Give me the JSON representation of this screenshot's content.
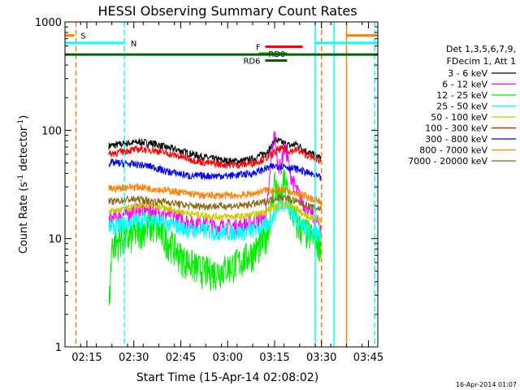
{
  "chart_data": {
    "type": "line",
    "title": "HESSI Observing Summary Count Rates",
    "xlabel": "Start Time (15-Apr-14 02:08:02)",
    "ylabel_main": "Count Rate (s",
    "ylabel_exp1": "-1",
    "ylabel_mid": " detector",
    "ylabel_exp2": "-1",
    "ylabel_end": ")",
    "yscale": "log",
    "ylim": [
      1,
      1000
    ],
    "xlim_minutes": [
      0,
      100
    ],
    "x_ticks": [
      {
        "label": "02:15",
        "minutes": 7
      },
      {
        "label": "02:30",
        "minutes": 22
      },
      {
        "label": "02:45",
        "minutes": 37
      },
      {
        "label": "03:00",
        "minutes": 52
      },
      {
        "label": "03:15",
        "minutes": 67
      },
      {
        "label": "03:30",
        "minutes": 82
      },
      {
        "label": "03:45",
        "minutes": 97
      }
    ],
    "y_ticks": [
      {
        "label": "1",
        "value": 1
      },
      {
        "label": "10",
        "value": 10
      },
      {
        "label": "100",
        "value": 100
      },
      {
        "label": "1000",
        "value": 1000
      }
    ],
    "legend_header": [
      "Det 1,3,5,6,7,9,",
      "FDecim 1, Att 1"
    ],
    "legend_placement": "right",
    "series": [
      {
        "name": "3 - 6 keV",
        "color": "#000000",
        "x": [
          14,
          16,
          20,
          24,
          28,
          32,
          36,
          40,
          44,
          48,
          52,
          56,
          60,
          62,
          64,
          66,
          67,
          68,
          70,
          72,
          74,
          76,
          78,
          80,
          82
        ],
        "y": [
          72,
          73,
          76,
          78,
          76,
          70,
          66,
          61,
          57,
          54,
          52,
          52,
          54,
          58,
          62,
          70,
          82,
          80,
          76,
          72,
          75,
          68,
          62,
          58,
          55
        ]
      },
      {
        "name": "6 - 12 keV",
        "color": "#ff00ff",
        "x": [
          14,
          16,
          20,
          24,
          28,
          32,
          36,
          40,
          44,
          48,
          52,
          56,
          60,
          62,
          64,
          65,
          66,
          67,
          68,
          69,
          70,
          71,
          72,
          74,
          76,
          78,
          80,
          82
        ],
        "y": [
          15,
          16,
          17,
          19,
          18,
          17,
          16,
          14,
          14,
          13,
          13,
          13,
          14,
          15,
          16,
          24,
          60,
          95,
          50,
          45,
          70,
          60,
          40,
          28,
          22,
          18,
          15,
          13
        ]
      },
      {
        "name": "12 - 25 keV",
        "color": "#00ee00",
        "x": [
          14,
          15,
          16,
          18,
          20,
          22,
          24,
          26,
          28,
          30,
          32,
          34,
          36,
          38,
          40,
          42,
          44,
          46,
          48,
          50,
          52,
          54,
          56,
          58,
          60,
          62,
          64,
          65,
          66,
          67,
          68,
          69,
          70,
          71,
          72,
          74,
          76,
          78,
          80,
          82
        ],
        "y": [
          2,
          9,
          9,
          10,
          10,
          11,
          12,
          13,
          13,
          12,
          10,
          9,
          7.5,
          6.5,
          6,
          5.5,
          5.2,
          5,
          5,
          5.2,
          5.5,
          5.8,
          6.2,
          6.8,
          7.5,
          8.5,
          10,
          13,
          20,
          35,
          25,
          22,
          35,
          28,
          20,
          14,
          12,
          11,
          10,
          9
        ]
      },
      {
        "name": "25 - 50 keV",
        "color": "#00ffff",
        "x": [
          14,
          16,
          20,
          24,
          28,
          32,
          36,
          40,
          44,
          48,
          52,
          56,
          60,
          62,
          64,
          66,
          68,
          70,
          72,
          74,
          76,
          78,
          80,
          82
        ],
        "y": [
          13,
          13,
          14,
          15,
          15,
          14,
          13,
          12,
          12,
          11.5,
          11.5,
          11.5,
          12,
          12.5,
          13,
          15,
          20,
          22,
          18,
          15,
          13,
          12,
          11.5,
          11
        ]
      },
      {
        "name": "50 - 100 keV",
        "color": "#cccc00",
        "x": [
          14,
          16,
          20,
          24,
          28,
          32,
          36,
          40,
          44,
          48,
          52,
          56,
          60,
          62,
          64,
          66,
          68,
          70,
          72,
          74,
          76,
          78,
          80,
          82
        ],
        "y": [
          18,
          18,
          19,
          20,
          20,
          19,
          18,
          17,
          16.5,
          16,
          16,
          16,
          16.5,
          17,
          18,
          19,
          20,
          21,
          20,
          19,
          17,
          16,
          15.5,
          15
        ]
      },
      {
        "name": "100 - 300 keV",
        "color": "#ff0000",
        "x": [
          14,
          16,
          20,
          24,
          28,
          32,
          36,
          40,
          44,
          48,
          52,
          56,
          60,
          62,
          64,
          66,
          68,
          70,
          72,
          74,
          76,
          78,
          80,
          82
        ],
        "y": [
          60,
          62,
          65,
          67,
          66,
          62,
          58,
          54,
          51,
          49,
          48,
          48,
          50,
          52,
          55,
          60,
          66,
          68,
          64,
          66,
          62,
          58,
          55,
          52
        ]
      },
      {
        "name": "300 - 800 keV",
        "color": "#0000ee",
        "x": [
          14,
          16,
          20,
          24,
          28,
          32,
          36,
          40,
          44,
          48,
          52,
          56,
          60,
          62,
          64,
          66,
          68,
          70,
          72,
          74,
          76,
          78,
          80,
          82
        ],
        "y": [
          50,
          50,
          49,
          48,
          46,
          42,
          40,
          38,
          38,
          38,
          38,
          39,
          40,
          42,
          44,
          46,
          47,
          47,
          45,
          44,
          42,
          40,
          38,
          36
        ]
      },
      {
        "name": "800 - 7000 keV",
        "color": "#ff8000",
        "x": [
          14,
          16,
          20,
          24,
          28,
          32,
          36,
          40,
          44,
          48,
          52,
          56,
          60,
          62,
          64,
          66,
          68,
          70,
          72,
          74,
          76,
          78,
          80,
          82
        ],
        "y": [
          29,
          29,
          30,
          30,
          29,
          28,
          27,
          26,
          25,
          25,
          25,
          25,
          26,
          27,
          28,
          28,
          28,
          28,
          27,
          26,
          25,
          24,
          23,
          22
        ]
      },
      {
        "name": "7000 - 20000 keV",
        "color": "#8b6914",
        "x": [
          14,
          16,
          20,
          24,
          28,
          32,
          36,
          40,
          44,
          48,
          52,
          56,
          60,
          62,
          64,
          66,
          68,
          70,
          72,
          74,
          76,
          78,
          80,
          82
        ],
        "y": [
          22,
          22,
          23,
          23,
          22,
          22,
          21,
          20,
          20,
          20,
          20,
          20,
          21,
          21,
          22,
          23,
          24,
          24,
          23,
          22,
          21,
          20,
          19,
          19
        ]
      }
    ],
    "flags": [
      {
        "label": "S",
        "color": "#ff8000",
        "x": [
          0,
          3
        ],
        "y": 750,
        "label_x": 5
      },
      {
        "label": "N",
        "color": "#00ffff",
        "x": [
          0,
          19
        ],
        "y": 640,
        "label_x": 21
      },
      {
        "label": "F",
        "color": "#ff0000",
        "x": [
          64,
          76
        ],
        "y": 590,
        "label_x": 61
      },
      {
        "label": "RD0",
        "color": "#00aa00",
        "x": [
          62,
          71
        ],
        "y": 510,
        "label_x": 65
      },
      {
        "label": "RD6",
        "color": "#006400",
        "x": [
          64,
          71
        ],
        "y": 440,
        "label_x": 57
      },
      {
        "label": "",
        "color": "#006400",
        "x": [
          0,
          100
        ],
        "y": 500,
        "label_x": 0
      },
      {
        "label": "",
        "color": "#00ffff",
        "x": [
          80,
          100
        ],
        "y": 640,
        "label_x": 0
      },
      {
        "label": "",
        "color": "#ff8000",
        "x": [
          90,
          100
        ],
        "y": 750,
        "label_x": 0
      }
    ],
    "vlines": [
      {
        "x": 3.5,
        "color": "#ff8000",
        "dash": true
      },
      {
        "x": 19,
        "color": "#00ffff",
        "dash": true
      },
      {
        "x": 80,
        "color": "#00ffff",
        "dash": false
      },
      {
        "x": 86,
        "color": "#00ffff",
        "dash": false
      },
      {
        "x": 90,
        "color": "#ff8000",
        "dash": false
      },
      {
        "x": 99,
        "color": "#00ffff",
        "dash": true
      },
      {
        "x": 82,
        "color": "#ff8000",
        "dash": true
      }
    ],
    "footer_date": "16-Apr-2014 01:07"
  }
}
